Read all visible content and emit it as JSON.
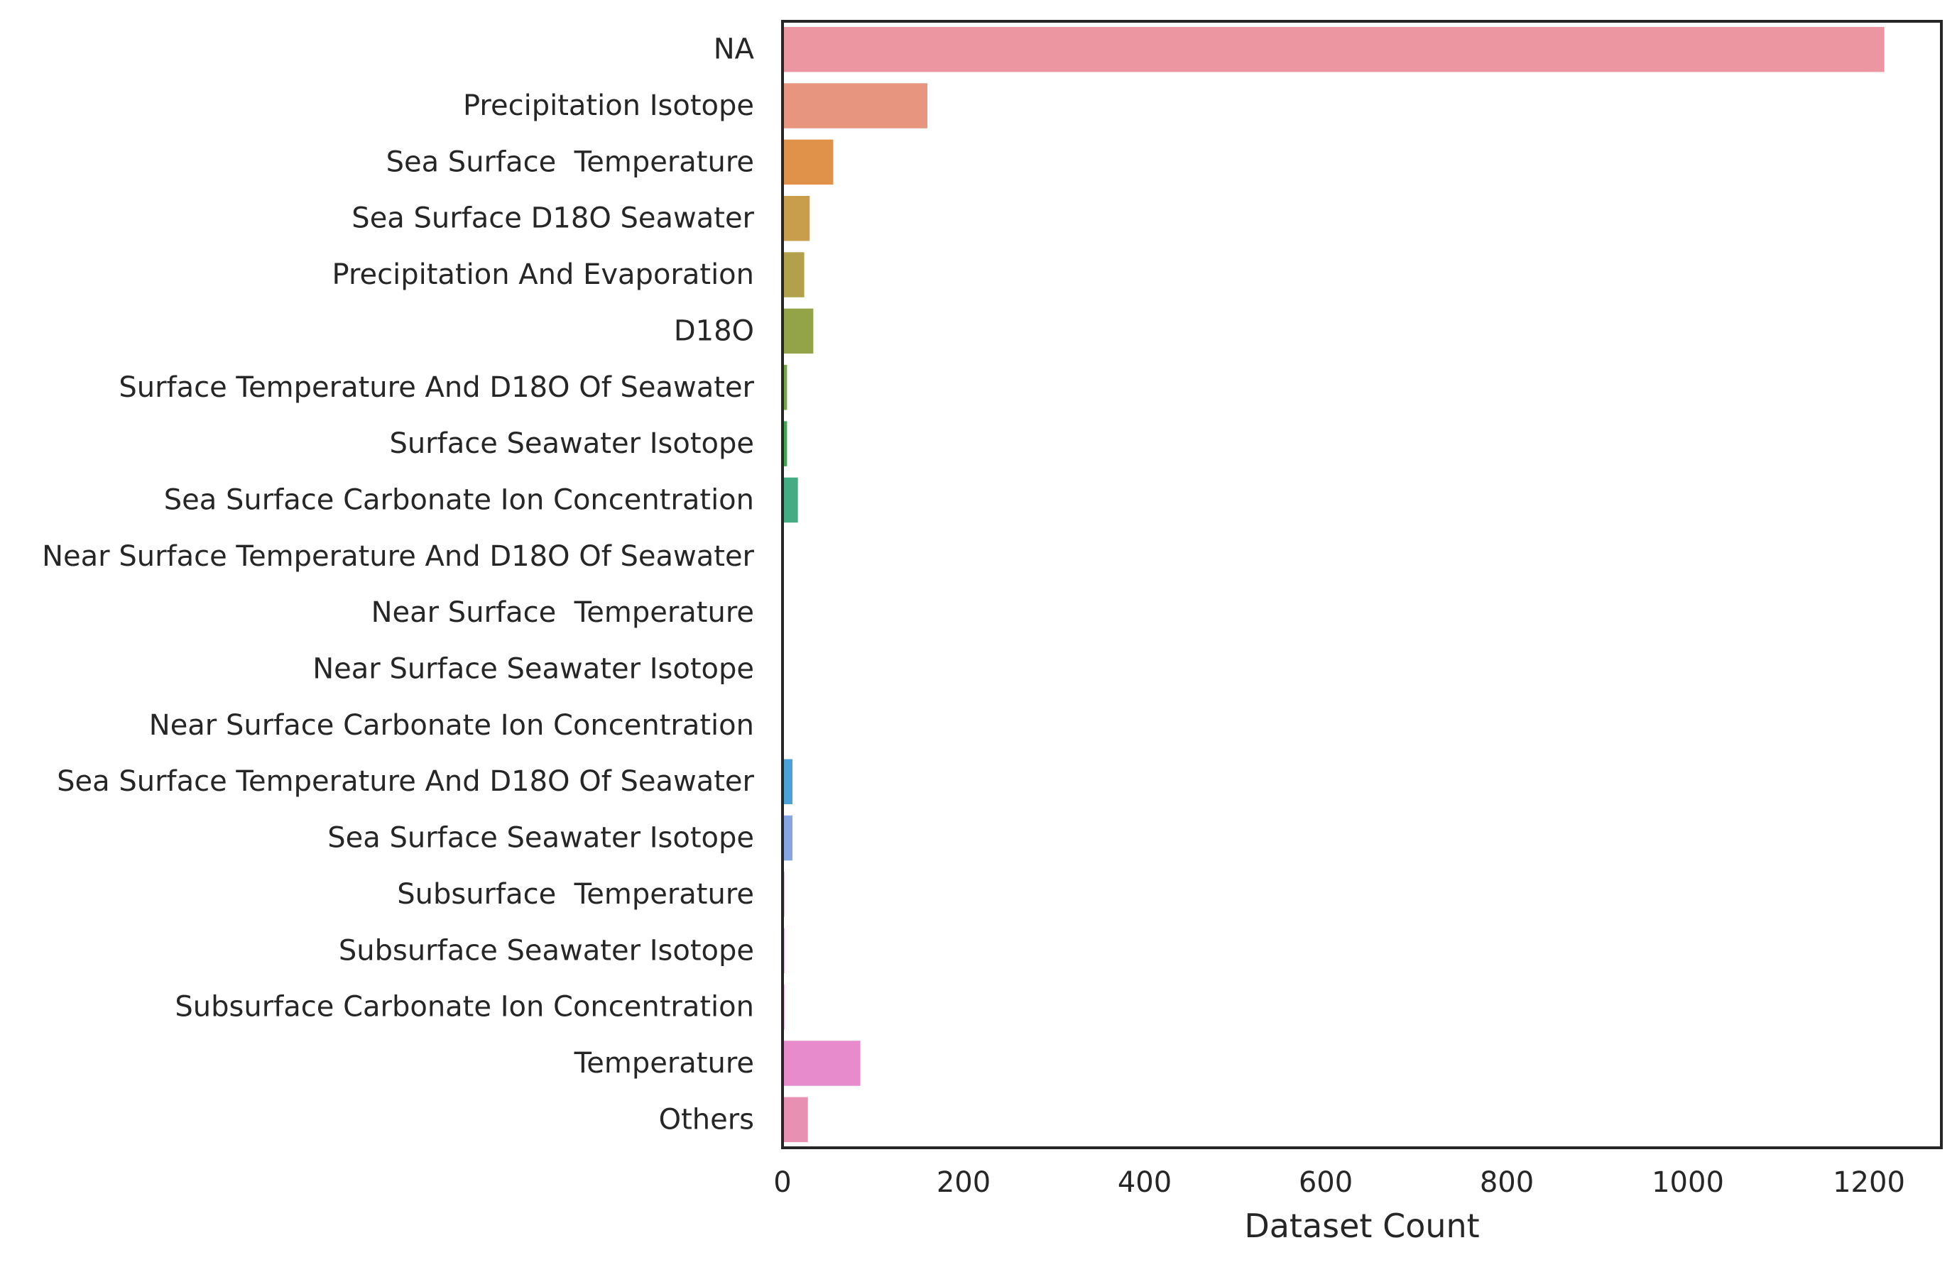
{
  "chart_data": {
    "type": "bar",
    "orientation": "horizontal",
    "title": "",
    "xlabel": "Dataset Count",
    "ylabel": "",
    "xlim": [
      0,
      1280
    ],
    "xticks": [
      0,
      200,
      400,
      600,
      800,
      1000,
      1200
    ],
    "xtick_labels": [
      "0",
      "200",
      "400",
      "600",
      "800",
      "1000",
      "1200"
    ],
    "grid": false,
    "legend": "none",
    "categories": [
      "NA",
      "Precipitation Isotope",
      "Sea Surface  Temperature",
      "Sea Surface D18O Seawater",
      "Precipitation And Evaporation",
      "D18O",
      "Surface Temperature And D18O Of Seawater",
      "Surface Seawater Isotope",
      "Sea Surface Carbonate Ion Concentration",
      "Near Surface Temperature And D18O Of Seawater",
      "Near Surface  Temperature",
      "Near Surface Seawater Isotope",
      "Near Surface Carbonate Ion Concentration",
      "Sea Surface Temperature And D18O Of Seawater",
      "Sea Surface Seawater Isotope",
      "Subsurface  Temperature",
      "Subsurface Seawater Isotope",
      "Subsurface Carbonate Ion Concentration",
      "Temperature",
      "Others"
    ],
    "values": [
      1217,
      160,
      56,
      30,
      24,
      34,
      5,
      5,
      17,
      0,
      0,
      0,
      0,
      11,
      11,
      2,
      2,
      2,
      86,
      28
    ],
    "colors": [
      "#ec96a2",
      "#e8957f",
      "#e0914a",
      "#c89d4c",
      "#b2a04a",
      "#93a448",
      "#72a944",
      "#3ea94e",
      "#44ac83",
      "#46ab99",
      "#46aaa9",
      "#48a9b8",
      "#4aa7c8",
      "#4aa3d8",
      "#86a5e4",
      "#b591e2",
      "#d37ee0",
      "#e37bd8",
      "#e88bcd",
      "#e890b2"
    ]
  }
}
